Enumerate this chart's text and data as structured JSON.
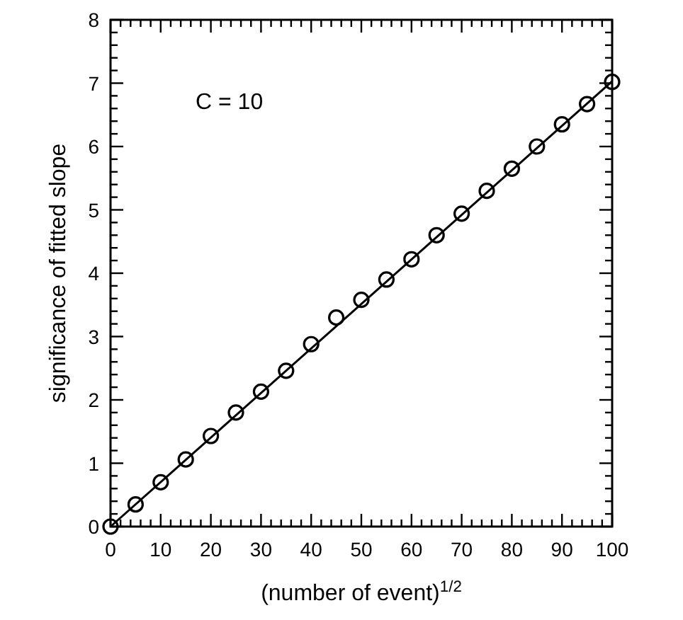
{
  "chart_data": {
    "type": "scatter",
    "xlabel": "(number of event)$^{1/2}$",
    "ylabel": "significance of fitted slope",
    "annotations": [
      "C = 10"
    ],
    "xlim": [
      0,
      100
    ],
    "ylim": [
      0,
      8
    ],
    "grid": false,
    "xticks": [
      0,
      {
        "value": 2,
        "label": null
      },
      {
        "value": 4,
        "label": null
      },
      {
        "value": 6,
        "label": null
      },
      {
        "value": 8,
        "label": null
      },
      10,
      {
        "value": 12,
        "label": null
      },
      {
        "value": 14,
        "label": null
      },
      {
        "value": 16,
        "label": null
      },
      {
        "value": 18,
        "label": null
      },
      20,
      {
        "value": 22,
        "label": null
      },
      {
        "value": 24,
        "label": null
      },
      {
        "value": 26,
        "label": null
      },
      {
        "value": 28,
        "label": null
      },
      30,
      {
        "value": 32,
        "label": null
      },
      {
        "value": 34,
        "label": null
      },
      {
        "value": 36,
        "label": null
      },
      {
        "value": 38,
        "label": null
      },
      40,
      {
        "value": 42,
        "label": null
      },
      {
        "value": 44,
        "label": null
      },
      {
        "value": 46,
        "label": null
      },
      {
        "value": 48,
        "label": null
      },
      50,
      {
        "value": 52,
        "label": null
      },
      {
        "value": 54,
        "label": null
      },
      {
        "value": 56,
        "label": null
      },
      {
        "value": 58,
        "label": null
      },
      60,
      {
        "value": 62,
        "label": null
      },
      {
        "value": 64,
        "label": null
      },
      {
        "value": 66,
        "label": null
      },
      {
        "value": 68,
        "label": null
      },
      70,
      {
        "value": 72,
        "label": null
      },
      {
        "value": 74,
        "label": null
      },
      {
        "value": 76,
        "label": null
      },
      {
        "value": 78,
        "label": null
      },
      80,
      {
        "value": 82,
        "label": null
      },
      {
        "value": 84,
        "label": null
      },
      {
        "value": 86,
        "label": null
      },
      {
        "value": 88,
        "label": null
      },
      90,
      {
        "value": 92,
        "label": null
      },
      {
        "value": 94,
        "label": null
      },
      {
        "value": 96,
        "label": null
      },
      {
        "value": 98,
        "label": null
      },
      100
    ],
    "yticks": [
      0,
      {
        "value": 0.2,
        "label": null
      },
      {
        "value": 0.4,
        "label": null
      },
      {
        "value": 0.6,
        "label": null
      },
      {
        "value": 0.8,
        "label": null
      },
      1,
      {
        "value": 1.2,
        "label": null
      },
      {
        "value": 1.4,
        "label": null
      },
      {
        "value": 1.6,
        "label": null
      },
      {
        "value": 1.8,
        "label": null
      },
      2,
      {
        "value": 2.2,
        "label": null
      },
      {
        "value": 2.4,
        "label": null
      },
      {
        "value": 2.6,
        "label": null
      },
      {
        "value": 2.8,
        "label": null
      },
      3,
      {
        "value": 3.2,
        "label": null
      },
      {
        "value": 3.4,
        "label": null
      },
      {
        "value": 3.6,
        "label": null
      },
      {
        "value": 3.8,
        "label": null
      },
      4,
      {
        "value": 4.2,
        "label": null
      },
      {
        "value": 4.4,
        "label": null
      },
      {
        "value": 4.6,
        "label": null
      },
      {
        "value": 4.8,
        "label": null
      },
      5,
      {
        "value": 5.2,
        "label": null
      },
      {
        "value": 5.4,
        "label": null
      },
      {
        "value": 5.6,
        "label": null
      },
      {
        "value": 5.8,
        "label": null
      },
      6,
      {
        "value": 6.2,
        "label": null
      },
      {
        "value": 6.4,
        "label": null
      },
      {
        "value": 6.6,
        "label": null
      },
      {
        "value": 6.8,
        "label": null
      },
      7,
      {
        "value": 7.2,
        "label": null
      },
      {
        "value": 7.4,
        "label": null
      },
      {
        "value": 7.6,
        "label": null
      },
      {
        "value": 7.8,
        "label": null
      },
      8
    ],
    "series": [
      {
        "type": "scatter",
        "color": "#000000",
        "marker": "circle",
        "x": [
          0,
          5,
          10,
          15,
          20,
          25,
          30,
          35,
          40,
          45,
          50,
          55,
          60,
          65,
          70,
          75,
          80,
          85,
          90,
          95,
          100
        ],
        "values": [
          0,
          0.35,
          0.7,
          1.06,
          1.43,
          1.8,
          2.13,
          2.46,
          2.88,
          3.3,
          3.58,
          3.9,
          4.22,
          4.6,
          4.94,
          5.3,
          5.65,
          6.0,
          6.35,
          6.67,
          7.02
        ]
      },
      {
        "type": "line",
        "color": "#000000",
        "line_style": "solid",
        "x": [
          0,
          100
        ],
        "values": [
          0,
          7.03
        ]
      }
    ]
  }
}
